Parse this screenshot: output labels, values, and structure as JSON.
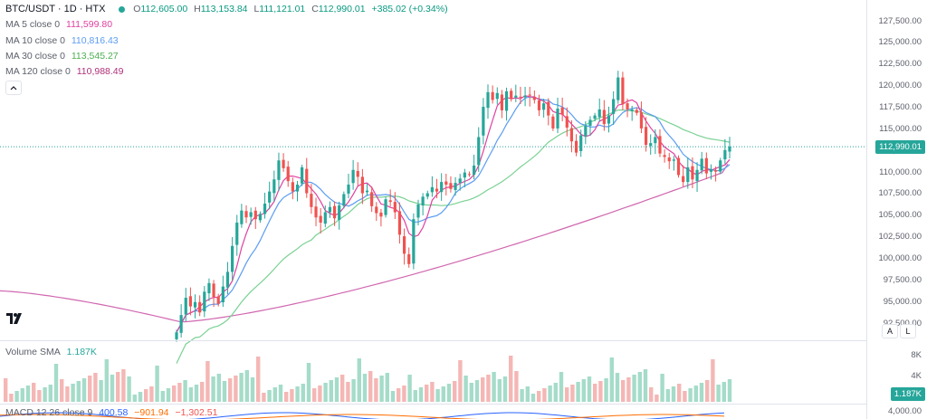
{
  "header": {
    "symbol": "BTC/USDT · 1D · HTX",
    "status_color": "#26a69a",
    "ohlc": {
      "o_label": "O",
      "o": "112,605.00",
      "h_label": "H",
      "h": "113,153.84",
      "l_label": "L",
      "l": "111,121.01",
      "c_label": "C",
      "c": "112,990.01",
      "change": "+385.02 (+0.34%)"
    }
  },
  "indicators": [
    {
      "label": "MA 5 close 0",
      "value": "111,599.80",
      "color": "#e040a0"
    },
    {
      "label": "MA 10 close 0",
      "value": "110,816.43",
      "color": "#5b9cf2"
    },
    {
      "label": "MA 30 close 0",
      "value": "113,545.27",
      "color": "#4caf50"
    },
    {
      "label": "MA 120 close 0",
      "value": "110,988.49",
      "color": "#b0307a"
    }
  ],
  "collapse_icon": "chevron-up-icon",
  "price_axis": {
    "ticks": [
      "127,500.00",
      "125,000.00",
      "122,500.00",
      "120,000.00",
      "117,500.00",
      "115,000.00",
      "112,500.00",
      "110,000.00",
      "107,500.00",
      "105,000.00",
      "102,500.00",
      "100,000.00",
      "97,500.00",
      "95,000.00",
      "92,500.00"
    ],
    "last_price": "112,990.01",
    "auto_label": "A",
    "log_label": "L"
  },
  "volume": {
    "title": "Volume SMA",
    "value": "1.187K",
    "ticks": [
      "8K",
      "4K"
    ],
    "badge": "1.187K"
  },
  "macd": {
    "title": "MACD 12 26 close 9",
    "v1": "400.58",
    "v2": "−901.94",
    "v3": "−1,302.51",
    "tick": "4,000.00"
  },
  "chart_data": {
    "type": "candlestick",
    "ylim": [
      91000,
      128500
    ],
    "closes": [
      91500,
      93500,
      95500,
      94500,
      95000,
      93800,
      96200,
      97200,
      95600,
      94800,
      96800,
      98500,
      101500,
      104200,
      105600,
      104800,
      105400,
      104600,
      105200,
      106400,
      107800,
      109200,
      111400,
      110500,
      109000,
      107800,
      108600,
      110600,
      107600,
      106000,
      104800,
      104200,
      105400,
      106000,
      104700,
      106200,
      107500,
      108600,
      110300,
      109500,
      107600,
      107900,
      106100,
      105300,
      104900,
      106900,
      106600,
      105400,
      102800,
      100600,
      99400,
      104600,
      106300,
      107200,
      107600,
      108300,
      107800,
      108900,
      108600,
      108100,
      108800,
      109300,
      110000,
      109800,
      110800,
      114100,
      117600,
      119300,
      118400,
      119200,
      117200,
      119400,
      118500,
      118900,
      118700,
      118900,
      118900,
      118400,
      117200,
      118000,
      116600,
      115100,
      117400,
      116700,
      115200,
      113600,
      112300,
      114300,
      115400,
      116100,
      116600,
      117300,
      115600,
      116600,
      118500,
      121000,
      117900,
      117300,
      117300,
      116900,
      115100,
      113200,
      113400,
      114100,
      112200,
      111800,
      111300,
      111500,
      109700,
      108900,
      110600,
      109200,
      110300,
      111600,
      109900,
      110400,
      110100,
      111400,
      112600,
      112990
    ],
    "ma5_last": 111599.8,
    "ma10_last": 110816.43,
    "ma30_last": 113545.27,
    "ma120_last": 110988.49,
    "colors": {
      "up": "#26a69a",
      "down": "#ef5350",
      "ma5": "#e040a0",
      "ma10": "#5b9cf2",
      "ma30": "#7ad193",
      "ma120": "#d067b0"
    }
  }
}
